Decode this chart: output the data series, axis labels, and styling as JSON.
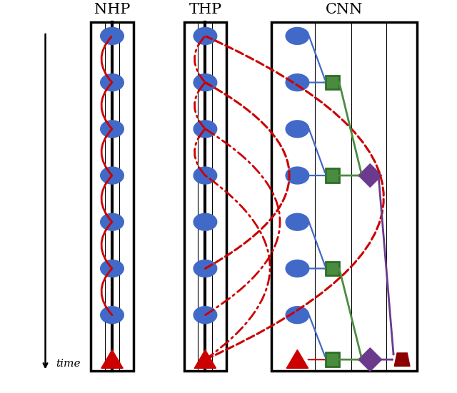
{
  "title_nhp": "NHP",
  "title_thp": "THP",
  "title_cnn": "CNN",
  "bg_color": "#ffffff",
  "blue": "#4169C8",
  "red": "#CC0000",
  "dark_red": "#8B0000",
  "green": "#4A8C3F",
  "green_edge": "#2d6e25",
  "purple": "#6B3A8C",
  "time_label": "time",
  "figsize": [
    6.4,
    5.51
  ],
  "dpi": 100
}
